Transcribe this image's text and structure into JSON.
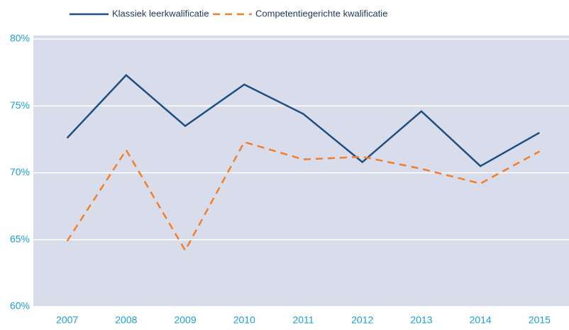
{
  "chart_data": {
    "type": "line",
    "categories": [
      "2007",
      "2008",
      "2009",
      "2010",
      "2011",
      "2012",
      "2013",
      "2014",
      "2015"
    ],
    "series": [
      {
        "name": "Klassiek leerkwalificatie",
        "color": "#1d4f82",
        "dash": false,
        "values": [
          72.6,
          77.3,
          73.5,
          76.6,
          74.4,
          70.8,
          74.6,
          70.5,
          73.0
        ]
      },
      {
        "name": "Competentiegerichte kwalificatie",
        "color": "#f07f2e",
        "dash": true,
        "values": [
          64.9,
          71.7,
          64.2,
          72.3,
          71.0,
          71.2,
          70.3,
          69.2,
          71.6
        ]
      }
    ],
    "ylim": [
      60,
      80
    ],
    "yticks": [
      {
        "value": 60,
        "label": "60%"
      },
      {
        "value": 65,
        "label": "65%"
      },
      {
        "value": 70,
        "label": "70%"
      },
      {
        "value": 75,
        "label": "75%"
      },
      {
        "value": 80,
        "label": "80%"
      }
    ],
    "grid": true
  }
}
